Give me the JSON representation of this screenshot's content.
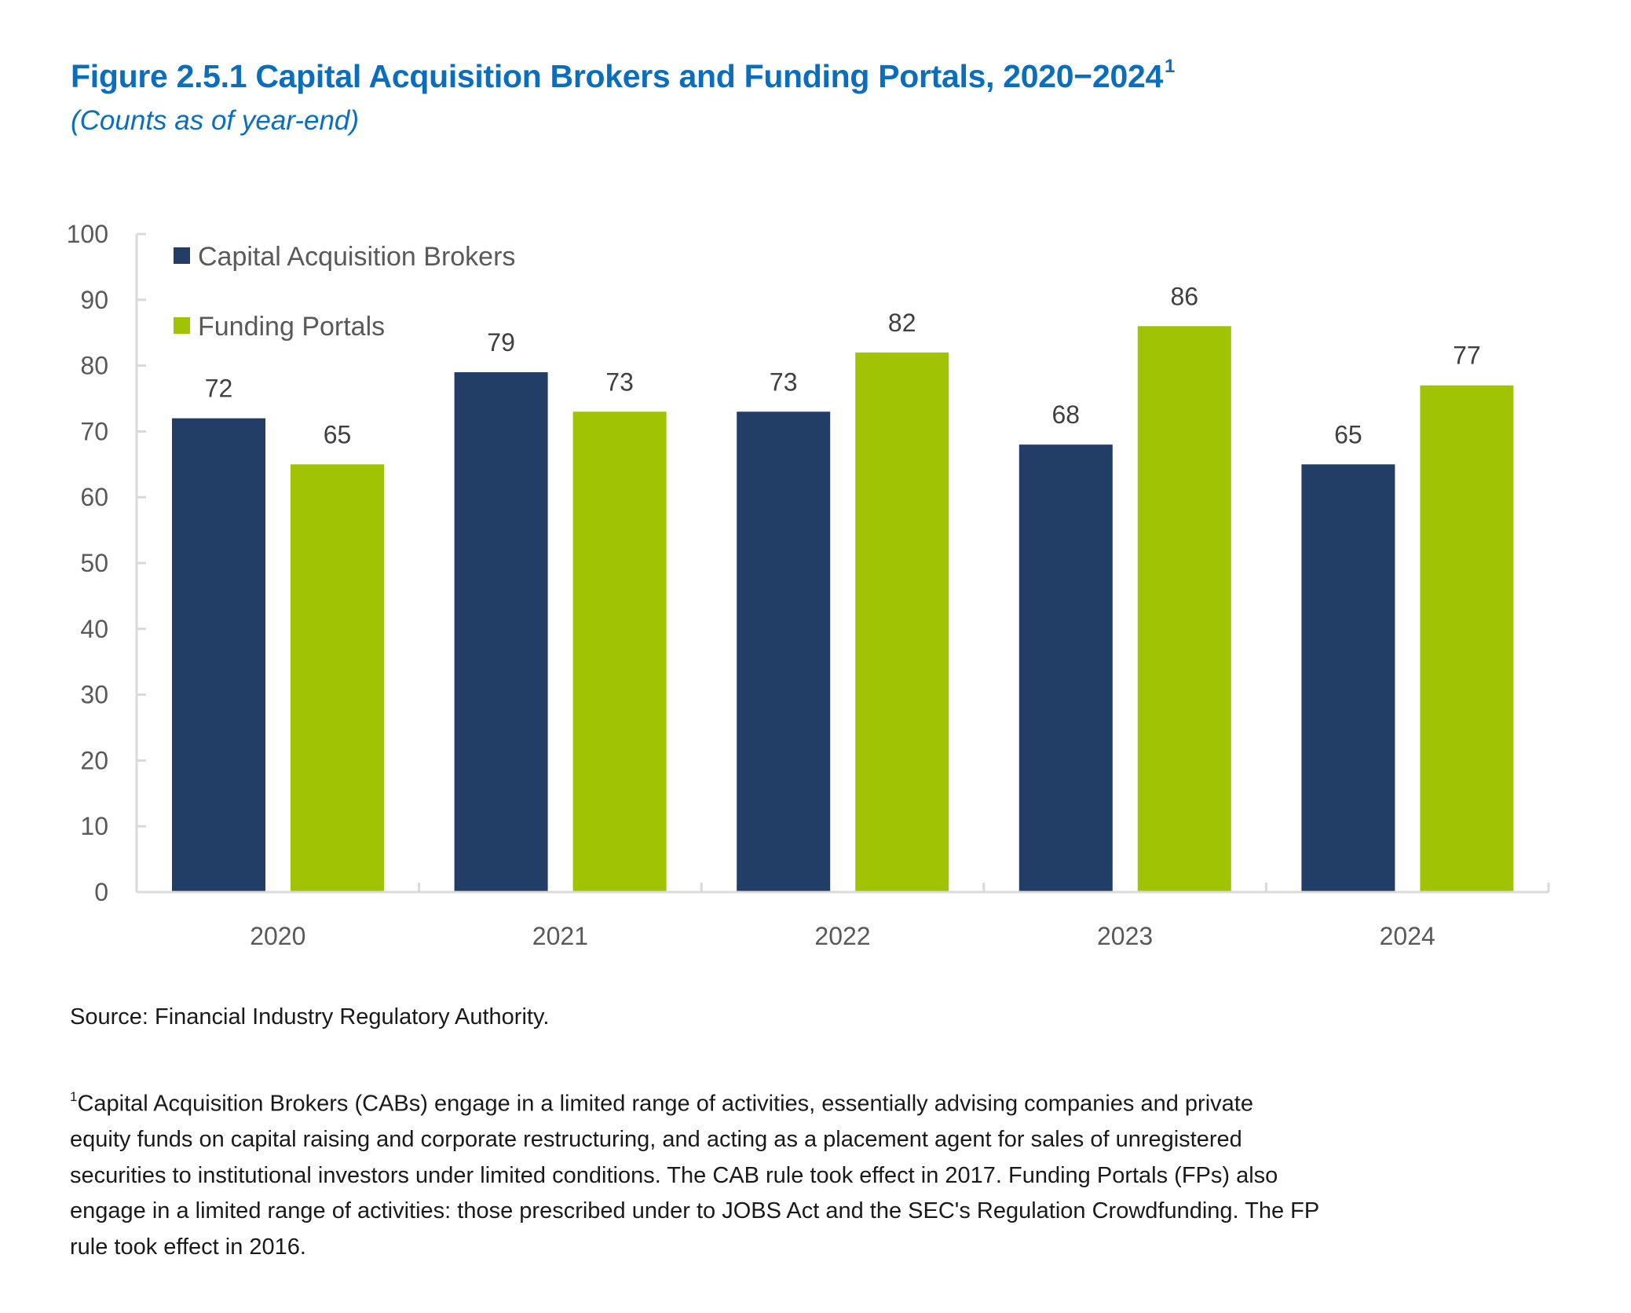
{
  "header": {
    "title": "Figure 2.5.1 Capital Acquisition Brokers and Funding Portals, 2020−2024",
    "title_superscript": "1",
    "subtitle": "(Counts as of year-end)"
  },
  "chart_data": {
    "type": "bar",
    "title": "Figure 2.5.1 Capital Acquisition Brokers and Funding Portals, 2020−2024",
    "subtitle": "(Counts as of year-end)",
    "xlabel": "",
    "ylabel": "",
    "categories": [
      "2020",
      "2021",
      "2022",
      "2023",
      "2024"
    ],
    "series": [
      {
        "name": "Capital Acquisition Brokers",
        "color": "#233e66",
        "values": [
          72,
          79,
          73,
          68,
          65
        ]
      },
      {
        "name": "Funding Portals",
        "color": "#a0c404",
        "values": [
          65,
          73,
          82,
          86,
          77
        ]
      }
    ],
    "ylim": [
      0,
      100
    ],
    "yticks": [
      0,
      10,
      20,
      30,
      40,
      50,
      60,
      70,
      80,
      90,
      100
    ],
    "grid": false,
    "data_labels": true,
    "legend_position": "top-left"
  },
  "colors": {
    "title": "#0a6ebd",
    "axis": "#d9d9d9",
    "tick_label": "#595959",
    "data_label": "#404040",
    "body_text": "#1a1a1a"
  },
  "notes": {
    "source": "Source: Financial Industry Regulatory Authority.",
    "footnote_marker": "1",
    "footnote_lines": [
      "Capital Acquisition Brokers (CABs) engage in a limited range of activities, essentially advising companies and private",
      "equity funds on capital raising and corporate restructuring, and acting as a placement agent for sales of unregistered",
      "securities to institutional investors under limited conditions. The CAB rule took effect in 2017. Funding Portals (FPs) also",
      "engage in a limited range of activities: those prescribed under to JOBS Act and the SEC's Regulation Crowdfunding. The FP",
      "rule took effect in 2016."
    ]
  }
}
